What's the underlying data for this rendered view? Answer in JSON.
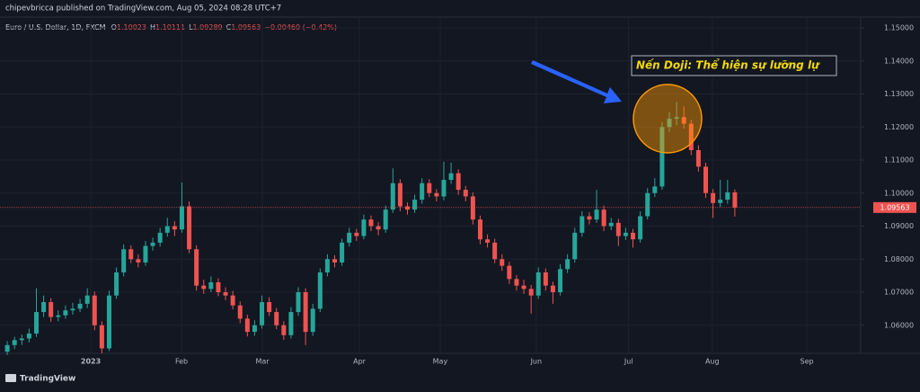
{
  "header": {
    "publisher": "chipevbricca published on TradingView.com, Aug 05, 2024 08:28 UTC+7"
  },
  "chart_data": {
    "type": "candlestick",
    "title": "Euro / U.S. Dollar, 1D, FXCM",
    "ohlc_labels": [
      "O",
      "H",
      "L",
      "C"
    ],
    "change": "−0.00460 (−0.42%)",
    "annotation": "Nến Doji: Thể hiện sự lưỡng lự",
    "up_color": "#26a69a",
    "down_color": "#ef5350",
    "grid": true,
    "xlim": [
      -1,
      117.3
    ],
    "ylim": [
      1.0515,
      1.153
    ],
    "yticks": [
      {
        "value": 1.06,
        "label": "1.06000"
      },
      {
        "value": 1.07,
        "label": "1.07000"
      },
      {
        "value": 1.08,
        "label": "1.08000"
      },
      {
        "value": 1.09,
        "label": "1.09000"
      },
      {
        "value": 1.1,
        "label": "1.10000"
      },
      {
        "value": 1.11,
        "label": "1.11000"
      },
      {
        "value": 1.12,
        "label": "1.12000"
      },
      {
        "value": 1.13,
        "label": "1.13000"
      },
      {
        "value": 1.14,
        "label": "1.14000"
      },
      {
        "value": 1.15,
        "label": "1.15000"
      }
    ],
    "xticks": [
      {
        "value": 11.48,
        "label": "2023"
      },
      {
        "value": 23.95,
        "label": "Feb"
      },
      {
        "value": 35.06,
        "label": "Mar"
      },
      {
        "value": 48.4,
        "label": "Apr"
      },
      {
        "value": 59.5,
        "label": "May"
      },
      {
        "value": 72.7,
        "label": "Jun"
      },
      {
        "value": 85.4,
        "label": "Jul"
      },
      {
        "value": 96.9,
        "label": "Aug"
      },
      {
        "value": 109.9,
        "label": "Sep"
      }
    ],
    "open": [
      1.052,
      1.054,
      1.0555,
      1.056,
      1.0575,
      1.064,
      1.067,
      1.0625,
      1.063,
      1.0645,
      1.065,
      1.0665,
      1.069,
      1.06,
      1.053,
      1.069,
      1.076,
      1.083,
      1.08,
      1.079,
      1.084,
      1.085,
      1.088,
      1.09,
      1.089,
      1.096,
      1.083,
      1.072,
      1.071,
      1.073,
      1.07,
      1.069,
      1.066,
      1.062,
      1.058,
      1.06,
      1.067,
      1.064,
      1.06,
      1.057,
      1.064,
      1.07,
      1.058,
      1.065,
      1.076,
      1.08,
      1.079,
      1.085,
      1.088,
      1.087,
      1.092,
      1.09,
      1.089,
      1.095,
      1.103,
      1.096,
      1.095,
      1.098,
      1.103,
      1.1,
      1.099,
      1.104,
      1.106,
      1.101,
      1.099,
      1.092,
      1.086,
      1.085,
      1.08,
      1.078,
      1.074,
      1.072,
      1.071,
      1.069,
      1.076,
      1.072,
      1.07,
      1.077,
      1.08,
      1.088,
      1.093,
      1.092,
      1.095,
      1.09,
      1.091,
      1.087,
      1.088,
      1.086,
      1.093,
      1.1,
      1.102,
      1.12,
      1.1225,
      1.123,
      1.121,
      1.113,
      1.108,
      1.1,
      1.097,
      1.098,
      1.10023
    ],
    "high": [
      1.0552,
      1.0565,
      1.0572,
      1.059,
      1.0712,
      1.069,
      1.0682,
      1.0645,
      1.066,
      1.0668,
      1.068,
      1.0712,
      1.0702,
      1.0612,
      1.0705,
      1.0775,
      1.0845,
      1.0842,
      1.0815,
      1.0855,
      1.0865,
      1.0895,
      1.0925,
      1.0915,
      1.1032,
      1.0975,
      1.0842,
      1.0738,
      1.0748,
      1.0742,
      1.0715,
      1.0704,
      1.0672,
      1.0632,
      1.0615,
      1.069,
      1.0685,
      1.0652,
      1.0612,
      1.0655,
      1.0715,
      1.0712,
      1.0665,
      1.0772,
      1.0815,
      1.0812,
      1.0862,
      1.0895,
      1.0892,
      1.0935,
      1.0932,
      1.0912,
      1.0962,
      1.1075,
      1.1042,
      1.0972,
      1.0995,
      1.1045,
      1.1042,
      1.1012,
      1.1095,
      1.1092,
      1.1072,
      1.1022,
      1.1002,
      1.0932,
      1.0875,
      1.0862,
      1.0815,
      1.0792,
      1.0752,
      1.0738,
      1.0722,
      1.0775,
      1.0772,
      1.0732,
      1.0785,
      1.0815,
      1.0895,
      1.0945,
      1.0942,
      1.101,
      1.0962,
      1.0925,
      1.0922,
      1.0895,
      1.0892,
      1.0945,
      1.1015,
      1.1045,
      1.1215,
      1.1245,
      1.1276,
      1.1262,
      1.1222,
      1.1145,
      1.1092,
      1.1012,
      1.104,
      1.104,
      1.10111
    ],
    "low": [
      1.051,
      1.0528,
      1.054,
      1.0548,
      1.0565,
      1.0625,
      1.061,
      1.0612,
      1.062,
      1.0632,
      1.064,
      1.0652,
      1.0585,
      1.0515,
      1.0522,
      1.068,
      1.0748,
      1.0788,
      1.0775,
      1.078,
      1.0826,
      1.0838,
      1.0868,
      1.087,
      1.088,
      1.0818,
      1.0705,
      1.0695,
      1.07,
      1.0688,
      1.0676,
      1.0648,
      1.0606,
      1.0566,
      1.0568,
      1.059,
      1.0628,
      1.0588,
      1.0556,
      1.056,
      1.0628,
      1.054,
      1.0568,
      1.064,
      1.0748,
      1.0775,
      1.078,
      1.0838,
      1.0855,
      1.086,
      1.0885,
      1.0872,
      1.088,
      1.094,
      1.0945,
      1.0935,
      1.094,
      1.0968,
      1.0988,
      1.0975,
      1.0978,
      1.1028,
      1.0995,
      1.0975,
      1.0905,
      1.0845,
      1.0835,
      1.0788,
      1.0765,
      1.0725,
      1.0705,
      1.0695,
      1.0635,
      1.068,
      1.0705,
      1.0665,
      1.069,
      1.0758,
      1.079,
      1.0868,
      1.0905,
      1.091,
      1.0885,
      1.0888,
      1.084,
      1.0858,
      1.0835,
      1.085,
      1.092,
      1.0988,
      1.101,
      1.1185,
      1.1205,
      1.1195,
      1.1115,
      1.1065,
      1.0985,
      1.0925,
      1.0958,
      1.0968,
      1.09289
    ],
    "close": [
      1.054,
      1.0555,
      1.056,
      1.0575,
      1.064,
      1.067,
      1.0625,
      1.063,
      1.0645,
      1.065,
      1.0665,
      1.069,
      1.06,
      1.053,
      1.069,
      1.076,
      1.083,
      1.08,
      1.079,
      1.084,
      1.085,
      1.088,
      1.09,
      1.089,
      1.096,
      1.083,
      1.072,
      1.071,
      1.073,
      1.07,
      1.069,
      1.066,
      1.062,
      1.058,
      1.06,
      1.067,
      1.064,
      1.06,
      1.057,
      1.064,
      1.07,
      1.058,
      1.065,
      1.076,
      1.08,
      1.079,
      1.085,
      1.088,
      1.087,
      1.092,
      1.09,
      1.089,
      1.095,
      1.103,
      1.096,
      1.095,
      1.098,
      1.103,
      1.1,
      1.099,
      1.104,
      1.106,
      1.101,
      1.099,
      1.092,
      1.086,
      1.085,
      1.08,
      1.078,
      1.074,
      1.072,
      1.071,
      1.069,
      1.076,
      1.072,
      1.07,
      1.077,
      1.08,
      1.088,
      1.093,
      1.092,
      1.095,
      1.09,
      1.091,
      1.087,
      1.088,
      1.086,
      1.093,
      1.1,
      1.102,
      1.12,
      1.1225,
      1.123,
      1.121,
      1.113,
      1.108,
      1.1,
      1.097,
      1.098,
      1.10023,
      1.09563
    ]
  },
  "footer": {
    "logo": "TradingView"
  }
}
